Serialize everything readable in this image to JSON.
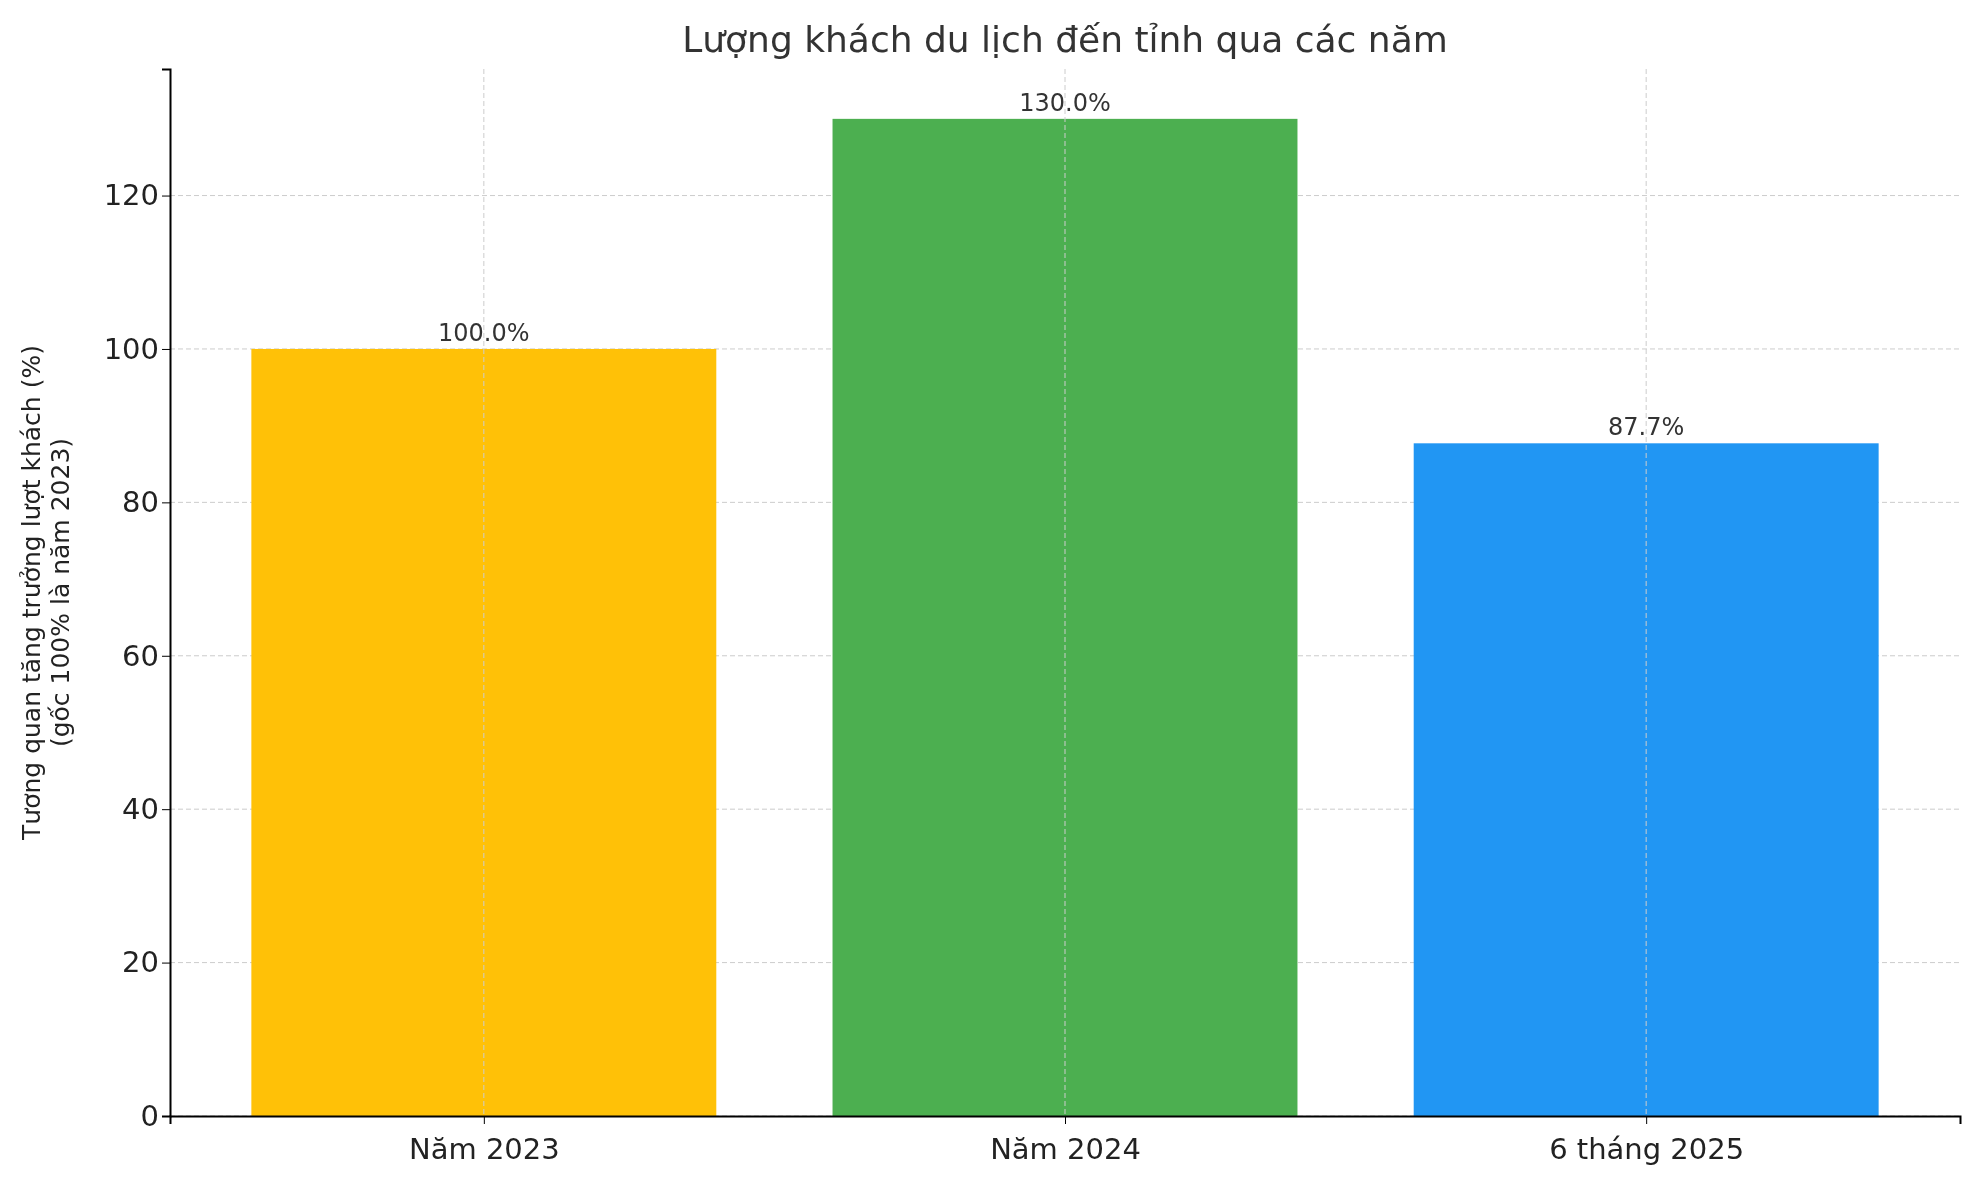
{
  "chart_data": {
    "type": "bar",
    "title": "Lượng khách du lịch đến tỉnh qua các năm",
    "ylabel": "Tương quan tăng trưởng lượt khách (%)\n(gốc 100% là năm 2023)",
    "categories": [
      "Năm 2023",
      "Năm 2024",
      "6 tháng 2025"
    ],
    "values": [
      100,
      130,
      87.7
    ],
    "colors": [
      "#ffc107",
      "#4caf50",
      "#2196f3"
    ],
    "value_labels": [
      "100.0%",
      "130.0%",
      "87.7%"
    ],
    "ylim": [
      0,
      136.5
    ],
    "yticks": [
      0,
      20,
      40,
      60,
      80,
      100,
      120
    ],
    "grid": true
  }
}
